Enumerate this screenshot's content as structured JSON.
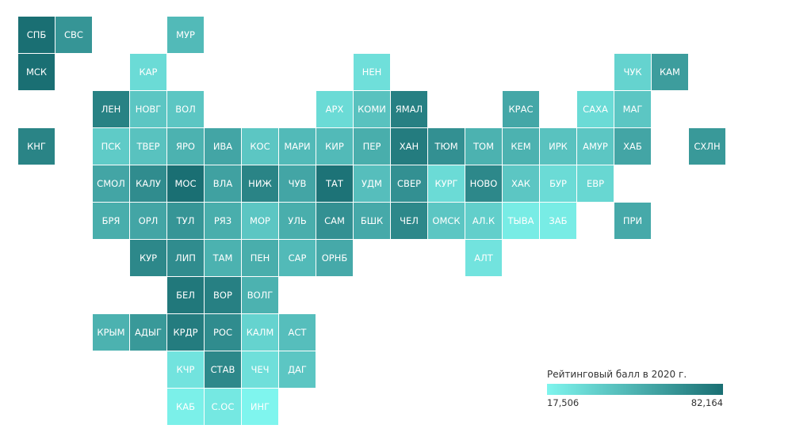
{
  "chart_data": {
    "type": "heatmap",
    "legend": {
      "title": "Рейтинговый балл в 2020 г.",
      "min": 17.506,
      "max": 82.164,
      "min_label": "17,506",
      "max_label": "82,164",
      "color_low": "#7ff5ee",
      "color_high": "#1a6f73",
      "placement": "bottom-right"
    },
    "tiles": [
      {
        "label": "СПБ",
        "col": 0,
        "row": 0,
        "value": 82.1
      },
      {
        "label": "СВС",
        "col": 1,
        "row": 0,
        "value": 64
      },
      {
        "label": "МУР",
        "col": 4,
        "row": 0,
        "value": 46
      },
      {
        "label": "МСК",
        "col": 0,
        "row": 1,
        "value": 82.1
      },
      {
        "label": "КАР",
        "col": 3,
        "row": 1,
        "value": 30
      },
      {
        "label": "НЕН",
        "col": 9,
        "row": 1,
        "value": 28
      },
      {
        "label": "ЧУК",
        "col": 16,
        "row": 1,
        "value": 34
      },
      {
        "label": "КАМ",
        "col": 17,
        "row": 1,
        "value": 60
      },
      {
        "label": "ЛЕН",
        "col": 2,
        "row": 2,
        "value": 73
      },
      {
        "label": "НОВГ",
        "col": 3,
        "row": 2,
        "value": 40
      },
      {
        "label": "ВОЛ",
        "col": 4,
        "row": 2,
        "value": 40
      },
      {
        "label": "АРХ",
        "col": 8,
        "row": 2,
        "value": 30
      },
      {
        "label": "КОМИ",
        "col": 9,
        "row": 2,
        "value": 42
      },
      {
        "label": "ЯМАЛ",
        "col": 10,
        "row": 2,
        "value": 74
      },
      {
        "label": "КРАС",
        "col": 13,
        "row": 2,
        "value": 55
      },
      {
        "label": "САХА",
        "col": 15,
        "row": 2,
        "value": 30
      },
      {
        "label": "МАГ",
        "col": 16,
        "row": 2,
        "value": 40
      },
      {
        "label": "КНГ",
        "col": 0,
        "row": 3,
        "value": 72
      },
      {
        "label": "ПСК",
        "col": 2,
        "row": 3,
        "value": 38
      },
      {
        "label": "ТВЕР",
        "col": 3,
        "row": 3,
        "value": 42
      },
      {
        "label": "ЯРО",
        "col": 4,
        "row": 3,
        "value": 50
      },
      {
        "label": "ИВА",
        "col": 5,
        "row": 3,
        "value": 56
      },
      {
        "label": "КОС",
        "col": 6,
        "row": 3,
        "value": 40
      },
      {
        "label": "МАРИ",
        "col": 7,
        "row": 3,
        "value": 46
      },
      {
        "label": "КИР",
        "col": 8,
        "row": 3,
        "value": 46
      },
      {
        "label": "ПЕР",
        "col": 9,
        "row": 3,
        "value": 52
      },
      {
        "label": "ХАН",
        "col": 10,
        "row": 3,
        "value": 76
      },
      {
        "label": "ТЮМ",
        "col": 11,
        "row": 3,
        "value": 66
      },
      {
        "label": "ТОМ",
        "col": 12,
        "row": 3,
        "value": 50
      },
      {
        "label": "КЕМ",
        "col": 13,
        "row": 3,
        "value": 50
      },
      {
        "label": "ИРК",
        "col": 14,
        "row": 3,
        "value": 42
      },
      {
        "label": "АМУР",
        "col": 15,
        "row": 3,
        "value": 40
      },
      {
        "label": "ХАБ",
        "col": 16,
        "row": 3,
        "value": 56
      },
      {
        "label": "СХЛН",
        "col": 18,
        "row": 3,
        "value": 62
      },
      {
        "label": "СМОЛ",
        "col": 2,
        "row": 4,
        "value": 56
      },
      {
        "label": "КАЛУ",
        "col": 3,
        "row": 4,
        "value": 68
      },
      {
        "label": "МОС",
        "col": 4,
        "row": 4,
        "value": 82
      },
      {
        "label": "ВЛА",
        "col": 5,
        "row": 4,
        "value": 58
      },
      {
        "label": "НИЖ",
        "col": 6,
        "row": 4,
        "value": 72
      },
      {
        "label": "ЧУВ",
        "col": 7,
        "row": 4,
        "value": 56
      },
      {
        "label": "ТАТ",
        "col": 8,
        "row": 4,
        "value": 80
      },
      {
        "label": "УДМ",
        "col": 9,
        "row": 4,
        "value": 44
      },
      {
        "label": "СВЕР",
        "col": 10,
        "row": 4,
        "value": 66
      },
      {
        "label": "КУРГ",
        "col": 11,
        "row": 4,
        "value": 30
      },
      {
        "label": "НОВО",
        "col": 12,
        "row": 4,
        "value": 70
      },
      {
        "label": "ХАК",
        "col": 13,
        "row": 4,
        "value": 40
      },
      {
        "label": "БУР",
        "col": 14,
        "row": 4,
        "value": 30
      },
      {
        "label": "ЕВР",
        "col": 15,
        "row": 4,
        "value": 32
      },
      {
        "label": "БРЯ",
        "col": 2,
        "row": 5,
        "value": 52
      },
      {
        "label": "ОРЛ",
        "col": 3,
        "row": 5,
        "value": 56
      },
      {
        "label": "ТУЛ",
        "col": 4,
        "row": 5,
        "value": 64
      },
      {
        "label": "РЯЗ",
        "col": 5,
        "row": 5,
        "value": 52
      },
      {
        "label": "МОР",
        "col": 6,
        "row": 5,
        "value": 40
      },
      {
        "label": "УЛЬ",
        "col": 7,
        "row": 5,
        "value": 52
      },
      {
        "label": "САМ",
        "col": 8,
        "row": 5,
        "value": 66
      },
      {
        "label": "БШК",
        "col": 9,
        "row": 5,
        "value": 54
      },
      {
        "label": "ЧЕЛ",
        "col": 10,
        "row": 5,
        "value": 70
      },
      {
        "label": "ОМСК",
        "col": 11,
        "row": 5,
        "value": 40
      },
      {
        "label": "АЛ.К",
        "col": 12,
        "row": 5,
        "value": 36
      },
      {
        "label": "ТЫВА",
        "col": 13,
        "row": 5,
        "value": 22
      },
      {
        "label": "ЗАБ",
        "col": 14,
        "row": 5,
        "value": 22
      },
      {
        "label": "ПРИ",
        "col": 16,
        "row": 5,
        "value": 54
      },
      {
        "label": "КУР",
        "col": 3,
        "row": 6,
        "value": 70
      },
      {
        "label": "ЛИП",
        "col": 4,
        "row": 6,
        "value": 68
      },
      {
        "label": "ТАМ",
        "col": 5,
        "row": 6,
        "value": 50
      },
      {
        "label": "ПЕН",
        "col": 6,
        "row": 6,
        "value": 52
      },
      {
        "label": "САР",
        "col": 7,
        "row": 6,
        "value": 46
      },
      {
        "label": "ОРНБ",
        "col": 8,
        "row": 6,
        "value": 54
      },
      {
        "label": "АЛТ",
        "col": 12,
        "row": 6,
        "value": 26
      },
      {
        "label": "БЕЛ",
        "col": 4,
        "row": 7,
        "value": 78
      },
      {
        "label": "ВОР",
        "col": 5,
        "row": 7,
        "value": 74
      },
      {
        "label": "ВОЛГ",
        "col": 6,
        "row": 7,
        "value": 50
      },
      {
        "label": "КРЫМ",
        "col": 2,
        "row": 8,
        "value": 50
      },
      {
        "label": "АДЫГ",
        "col": 3,
        "row": 8,
        "value": 62
      },
      {
        "label": "КРДР",
        "col": 4,
        "row": 8,
        "value": 76
      },
      {
        "label": "РОС",
        "col": 5,
        "row": 8,
        "value": 68
      },
      {
        "label": "КАЛМ",
        "col": 6,
        "row": 8,
        "value": 34
      },
      {
        "label": "АСТ",
        "col": 7,
        "row": 8,
        "value": 44
      },
      {
        "label": "КЧР",
        "col": 4,
        "row": 9,
        "value": 26
      },
      {
        "label": "СТАВ",
        "col": 5,
        "row": 9,
        "value": 70
      },
      {
        "label": "ЧЕЧ",
        "col": 6,
        "row": 9,
        "value": 28
      },
      {
        "label": "ДАГ",
        "col": 7,
        "row": 9,
        "value": 40
      },
      {
        "label": "КАБ",
        "col": 4,
        "row": 10,
        "value": 20
      },
      {
        "label": "С.ОС",
        "col": 5,
        "row": 10,
        "value": 24
      },
      {
        "label": "ИНГ",
        "col": 6,
        "row": 10,
        "value": 17.5
      }
    ]
  }
}
